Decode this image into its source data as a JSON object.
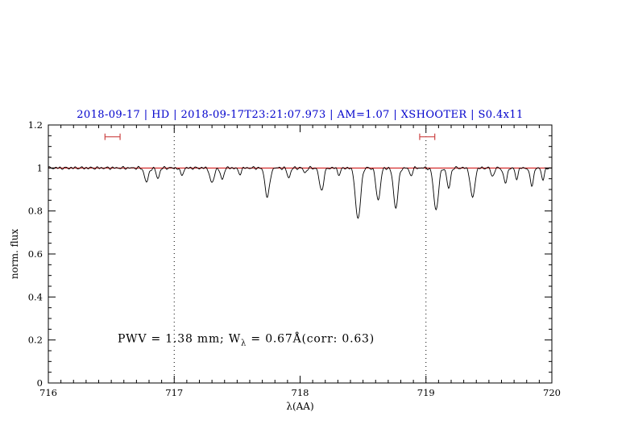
{
  "chart_data": {
    "type": "line",
    "title": "2018-09-17 | HD | 2018-09-17T23:21:07.973 | AM=1.07 | XSHOOTER | S0.4x11",
    "title_color": "#0000cc",
    "xlabel": "λ(AA)",
    "ylabel": "norm. flux",
    "xlim": [
      716,
      720
    ],
    "ylim": [
      0,
      1.2
    ],
    "x_ticks": [
      716,
      717,
      718,
      719,
      720
    ],
    "x_tick_labels": [
      "716",
      "717",
      "718",
      "719",
      "720"
    ],
    "y_ticks": [
      0,
      0.2,
      0.4,
      0.6,
      0.8,
      1,
      1.2
    ],
    "y_tick_labels": [
      "0",
      "0.2",
      "0.4",
      "0.6",
      "0.8",
      "1",
      "1.2"
    ],
    "x_minor_step": 0.1,
    "y_minor_step": 0.05,
    "grid": false,
    "continuum_level": 1.0,
    "continuum_color": "#cc0000",
    "spectrum_color": "#000000",
    "dotted_guides_x": [
      717,
      719
    ],
    "guide_color": "#000000",
    "range_markers": [
      {
        "x_min": 716.45,
        "x_max": 716.57,
        "y": 1.145
      },
      {
        "x_min": 718.95,
        "x_max": 719.07,
        "y": 1.145
      }
    ],
    "marker_color": "#cc4444",
    "sampling_step": 0.005,
    "absorption_lines": [
      {
        "center": 716.78,
        "depth": 0.065,
        "width": 0.016
      },
      {
        "center": 716.87,
        "depth": 0.048,
        "width": 0.013
      },
      {
        "center": 717.06,
        "depth": 0.032,
        "width": 0.013
      },
      {
        "center": 717.3,
        "depth": 0.072,
        "width": 0.016
      },
      {
        "center": 717.38,
        "depth": 0.055,
        "width": 0.013
      },
      {
        "center": 717.52,
        "depth": 0.028,
        "width": 0.012
      },
      {
        "center": 717.74,
        "depth": 0.135,
        "width": 0.018
      },
      {
        "center": 717.91,
        "depth": 0.045,
        "width": 0.013
      },
      {
        "center": 718.04,
        "depth": 0.022,
        "width": 0.012
      },
      {
        "center": 718.17,
        "depth": 0.105,
        "width": 0.017
      },
      {
        "center": 718.31,
        "depth": 0.03,
        "width": 0.012
      },
      {
        "center": 718.46,
        "depth": 0.24,
        "width": 0.02
      },
      {
        "center": 718.62,
        "depth": 0.15,
        "width": 0.017
      },
      {
        "center": 718.76,
        "depth": 0.185,
        "width": 0.018
      },
      {
        "center": 718.88,
        "depth": 0.035,
        "width": 0.012
      },
      {
        "center": 719.08,
        "depth": 0.195,
        "width": 0.019
      },
      {
        "center": 719.18,
        "depth": 0.095,
        "width": 0.014
      },
      {
        "center": 719.37,
        "depth": 0.14,
        "width": 0.017
      },
      {
        "center": 719.53,
        "depth": 0.04,
        "width": 0.012
      },
      {
        "center": 719.63,
        "depth": 0.07,
        "width": 0.014
      },
      {
        "center": 719.72,
        "depth": 0.048,
        "width": 0.012
      },
      {
        "center": 719.84,
        "depth": 0.08,
        "width": 0.014
      },
      {
        "center": 719.93,
        "depth": 0.052,
        "width": 0.012
      }
    ],
    "annotation": {
      "pre": "PWV = 1.38 mm; W",
      "sub": "λ",
      "post": " = 0.67Å(corr: 0.63)",
      "x": 716.55,
      "y": 0.19,
      "color": "#0000cc"
    }
  }
}
